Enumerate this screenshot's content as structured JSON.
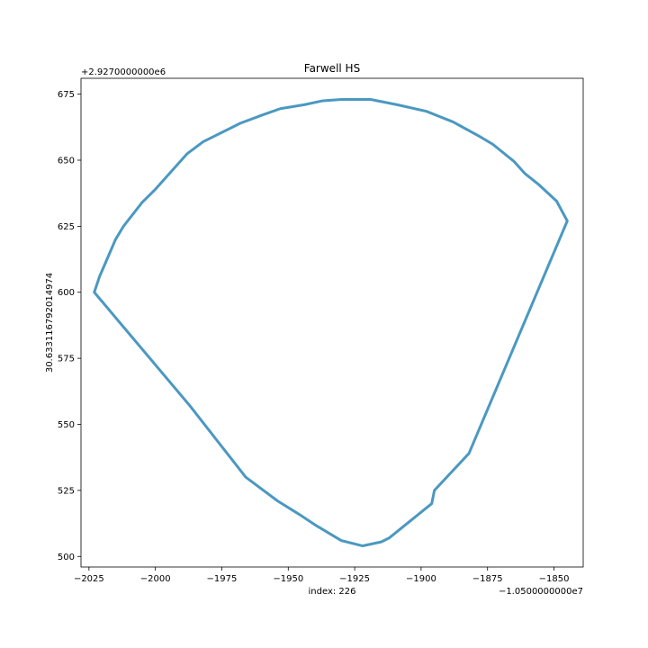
{
  "chart_data": {
    "type": "line",
    "title": "Farwell HS",
    "xlabel": "index: 226",
    "ylabel": "30.633116792014974",
    "x_offset_label": "−1.0500000000e7",
    "y_offset_label": "+2.9270000000e6",
    "xlim": [
      -2028,
      -1839
    ],
    "ylim": [
      496,
      681
    ],
    "x_ticks": [
      -2025,
      -2000,
      -1975,
      -1950,
      -1925,
      -1900,
      -1875,
      -1850
    ],
    "x_tick_labels": [
      "−2025",
      "−2000",
      "−1975",
      "−1950",
      "−1925",
      "−1900",
      "−1875",
      "−1850"
    ],
    "y_ticks": [
      500,
      525,
      550,
      575,
      600,
      625,
      650,
      675
    ],
    "y_tick_labels": [
      "500",
      "525",
      "550",
      "575",
      "600",
      "625",
      "650",
      "675"
    ],
    "grid": false,
    "series": [
      {
        "color": "#4b98c1",
        "x": [
          -2023,
          -2021,
          -2015,
          -2012,
          -2005,
          -2000,
          -1988,
          -1982,
          -1968,
          -1960,
          -1953,
          -1944,
          -1937,
          -1930,
          -1919,
          -1909,
          -1898,
          -1888,
          -1878,
          -1873,
          -1865,
          -1861,
          -1856,
          -1849,
          -1845,
          -1882,
          -1895,
          -1896,
          -1912,
          -1915,
          -1922,
          -1930,
          -1940,
          -1946,
          -1954,
          -1966,
          -1987,
          -2023
        ],
        "y": [
          600,
          606,
          620,
          625,
          634,
          639,
          652.5,
          657,
          664,
          667,
          669.5,
          671,
          672.5,
          673,
          673,
          671,
          668.5,
          664.5,
          659,
          656,
          649.5,
          645,
          641,
          634.5,
          627,
          539,
          525,
          520,
          507,
          505.5,
          504,
          506,
          512,
          516,
          521,
          530,
          557,
          600
        ]
      }
    ]
  }
}
